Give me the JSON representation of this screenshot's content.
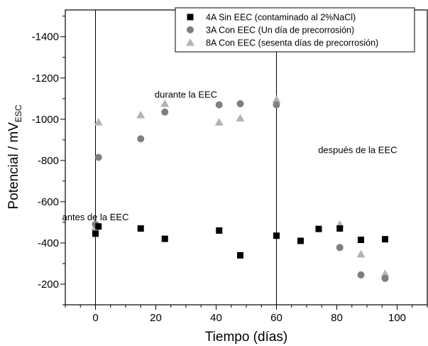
{
  "chart_data": {
    "type": "scatter",
    "xlabel": "Tiempo (días)",
    "ylabel_main": "Potencial / mV",
    "ylabel_sub": "ESC",
    "xlim": [
      -10,
      110
    ],
    "ylim": [
      -100,
      -1530
    ],
    "y_reversed": true,
    "x_ticks": [
      0,
      20,
      40,
      60,
      80,
      100
    ],
    "x_minor_step": 5,
    "y_ticks": [
      -200,
      -400,
      -600,
      -800,
      -1000,
      -1200,
      -1400
    ],
    "y_minor_step": 100,
    "grid": false,
    "legend_position": "top-right",
    "vertical_lines": [
      0,
      60
    ],
    "annotations": [
      {
        "text": "antes de la EEC",
        "x": 0,
        "y": -510
      },
      {
        "text": "durante la EEC",
        "x": 30,
        "y": -1105
      },
      {
        "text": "después de la EEC",
        "x": 100,
        "y": -835
      }
    ],
    "series": [
      {
        "name": "4A Sin EEC (contaminado al 2%NaCl)",
        "marker": "square",
        "color": "#000000",
        "points": [
          [
            0,
            -445
          ],
          [
            1,
            -480
          ],
          [
            15,
            -470
          ],
          [
            23,
            -420
          ],
          [
            41,
            -460
          ],
          [
            48,
            -340
          ],
          [
            60,
            -435
          ],
          [
            68,
            -410
          ],
          [
            74,
            -468
          ],
          [
            81,
            -470
          ],
          [
            88,
            -415
          ],
          [
            96,
            -418
          ]
        ]
      },
      {
        "name": "3A Con EEC (Un día de precorrosión)",
        "marker": "circle",
        "color": "#7f7f7f",
        "points": [
          [
            0,
            -490
          ],
          [
            1,
            -815
          ],
          [
            15,
            -905
          ],
          [
            23,
            -1035
          ],
          [
            41,
            -1070
          ],
          [
            48,
            -1075
          ],
          [
            60,
            -1070
          ],
          [
            81,
            -378
          ],
          [
            88,
            -245
          ],
          [
            96,
            -228
          ]
        ]
      },
      {
        "name": "8A Con EEC (sesenta días de precorrosión)",
        "marker": "triangle",
        "color": "#b3b3b3",
        "points": [
          [
            0,
            -475
          ],
          [
            1,
            -985
          ],
          [
            15,
            -1020
          ],
          [
            23,
            -1075
          ],
          [
            41,
            -985
          ],
          [
            48,
            -1005
          ],
          [
            60,
            -1095
          ],
          [
            81,
            -490
          ],
          [
            88,
            -345
          ],
          [
            96,
            -250
          ]
        ]
      }
    ]
  }
}
